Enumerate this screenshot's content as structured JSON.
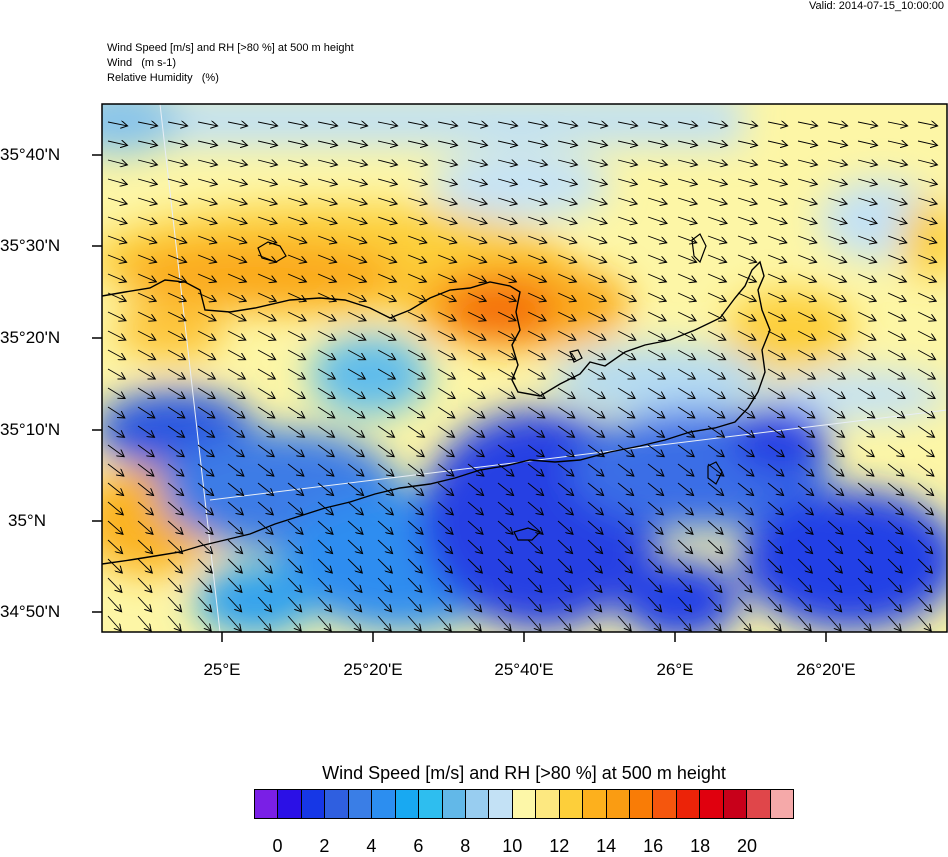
{
  "valid_time": "Valid: 2014-07-15_10:00:00",
  "header": {
    "line1": "Wind Speed [m/s] and RH [>80 %] at 500 m height",
    "line2": "Wind   (m s-1)",
    "line3": "Relative Humidity   (%)"
  },
  "axes": {
    "lat_labels": [
      "35°40'N",
      "35°30'N",
      "35°20'N",
      "35°10'N",
      "35°N",
      "34°50'N"
    ],
    "lon_labels": [
      "25°E",
      "25°20'E",
      "25°40'E",
      "26°E",
      "26°20'E"
    ]
  },
  "map_elements": {
    "region": "Crete",
    "vector_field": "wind arrows pointing east-southeast",
    "coastline_color": "#000000"
  },
  "colorbar": {
    "title": "Wind Speed [m/s] and RH [>80 %] at 500 m height",
    "colors": [
      "#7a1fe6",
      "#2b10e6",
      "#1637e6",
      "#2f5fe0",
      "#3a7ee6",
      "#2c8ef0",
      "#18a9f2",
      "#2ebeef",
      "#62b8e8",
      "#98cdf0",
      "#c3e1f5",
      "#fdf7a8",
      "#fde880",
      "#fdcf3a",
      "#fdb01d",
      "#fa9c12",
      "#f97c06",
      "#f5560d",
      "#ec2308",
      "#e0000e",
      "#c8001a",
      "#e0464a",
      "#f5a9a9"
    ],
    "tick_labels": [
      "0",
      "2",
      "4",
      "6",
      "8",
      "10",
      "12",
      "14",
      "16",
      "18",
      "20"
    ]
  }
}
